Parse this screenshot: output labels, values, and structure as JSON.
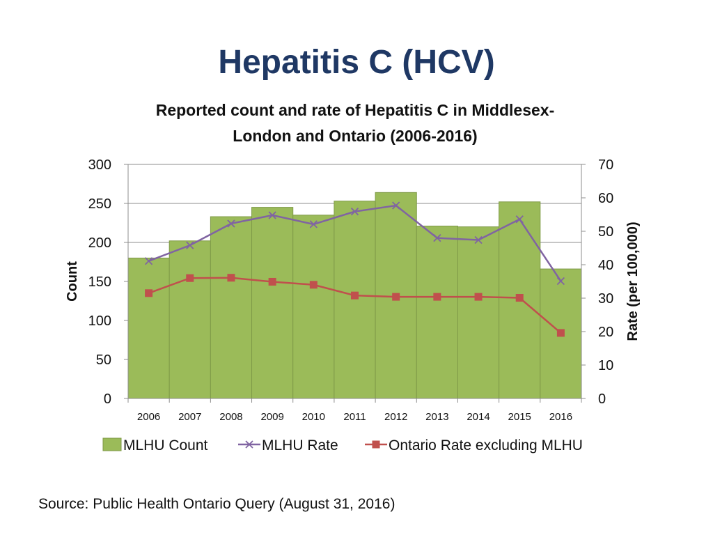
{
  "slide": {
    "title": "Hepatitis C (HCV)",
    "source": "Source: Public Health Ontario Query (August 31, 2016)"
  },
  "chart_data": {
    "type": "bar",
    "title": "Reported count and rate of Hepatitis C in Middlesex-London and Ontario (2006-2016)",
    "title_lines": [
      "Reported count and rate of Hepatitis C in Middlesex-",
      "London and Ontario (2006-2016)"
    ],
    "categories": [
      "2006",
      "2007",
      "2008",
      "2009",
      "2010",
      "2011",
      "2012",
      "2013",
      "2014",
      "2015",
      "2016"
    ],
    "ylabel": "Count",
    "y2label": "Rate (per 100,000)",
    "ylim": [
      0,
      300
    ],
    "y2lim": [
      0,
      70
    ],
    "yticks": [
      0,
      50,
      100,
      150,
      200,
      250,
      300
    ],
    "y2ticks": [
      0,
      10,
      20,
      30,
      40,
      50,
      60,
      70
    ],
    "grid": true,
    "legend_position": "bottom",
    "series": [
      {
        "name": "MLHU Count",
        "type": "bar",
        "axis": "left",
        "color": "#9bbb59",
        "values": [
          180,
          202,
          233,
          245,
          235,
          253,
          264,
          221,
          220,
          252,
          166
        ]
      },
      {
        "name": "MLHU Rate",
        "type": "line",
        "axis": "right",
        "color": "#8064a2",
        "marker": "x",
        "values": [
          41.1,
          45.8,
          52.3,
          54.8,
          52.1,
          55.9,
          57.7,
          48.0,
          47.4,
          53.6,
          35.1
        ]
      },
      {
        "name": "Ontario Rate excluding MLHU",
        "type": "line",
        "axis": "right",
        "color": "#c0504d",
        "marker": "square",
        "values": [
          31.5,
          36.0,
          36.1,
          34.9,
          34.0,
          30.8,
          30.4,
          30.4,
          30.4,
          30.1,
          19.6
        ]
      }
    ]
  }
}
